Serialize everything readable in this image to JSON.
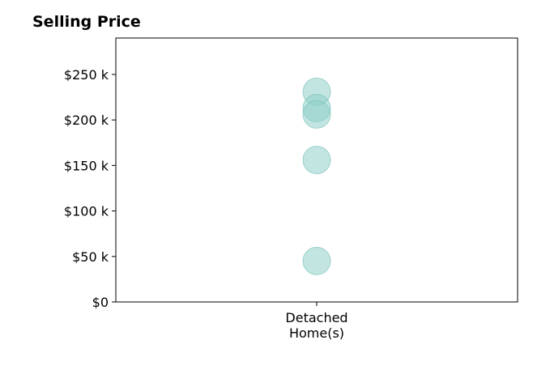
{
  "chart_data": {
    "type": "scatter",
    "title": "Selling Price",
    "xlabel": "",
    "ylabel": "",
    "categories": [
      "Detached\nHome(s)"
    ],
    "ylim": [
      0,
      290000
    ],
    "yticks": [
      0,
      50000,
      100000,
      150000,
      200000,
      250000
    ],
    "ytick_labels": [
      "$0",
      "$50 k",
      "$100 k",
      "$150 k",
      "$200 k",
      "$250 k"
    ],
    "series": [
      {
        "category_index": 0,
        "values": [
          231000,
          213000,
          206000,
          156000,
          45000
        ]
      }
    ],
    "marker_color": "#8fcfc8",
    "marker_edge_color": "#6fbdb4",
    "marker_alpha": 0.55,
    "grid": false,
    "legend": "none"
  }
}
